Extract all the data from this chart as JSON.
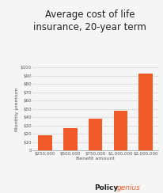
{
  "title_line1": "Average cost of life",
  "title_line2": "insurance, 20-year term",
  "categories": [
    "$250,000",
    "$500,000",
    "$750,000",
    "$1,000,000",
    "$2,000,000"
  ],
  "values": [
    18,
    27,
    38,
    48,
    93
  ],
  "bar_color": "#F05A28",
  "xlabel": "Benefit amount",
  "ylabel": "Monthly premium",
  "ylim": [
    0,
    100
  ],
  "yticks": [
    0,
    10,
    20,
    30,
    40,
    50,
    60,
    70,
    80,
    90,
    100
  ],
  "ytick_labels": [
    "0",
    "$10",
    "$20",
    "$30",
    "$40",
    "$50",
    "$60",
    "$70",
    "$80",
    "$90",
    "$100"
  ],
  "background_color": "#f5f5f5",
  "logo_text_poly": "Policy",
  "logo_text_genius": "genius",
  "title_fontsize": 8.5,
  "axis_label_fontsize": 4.5,
  "tick_fontsize": 4.0,
  "logo_fontsize": 6.5
}
